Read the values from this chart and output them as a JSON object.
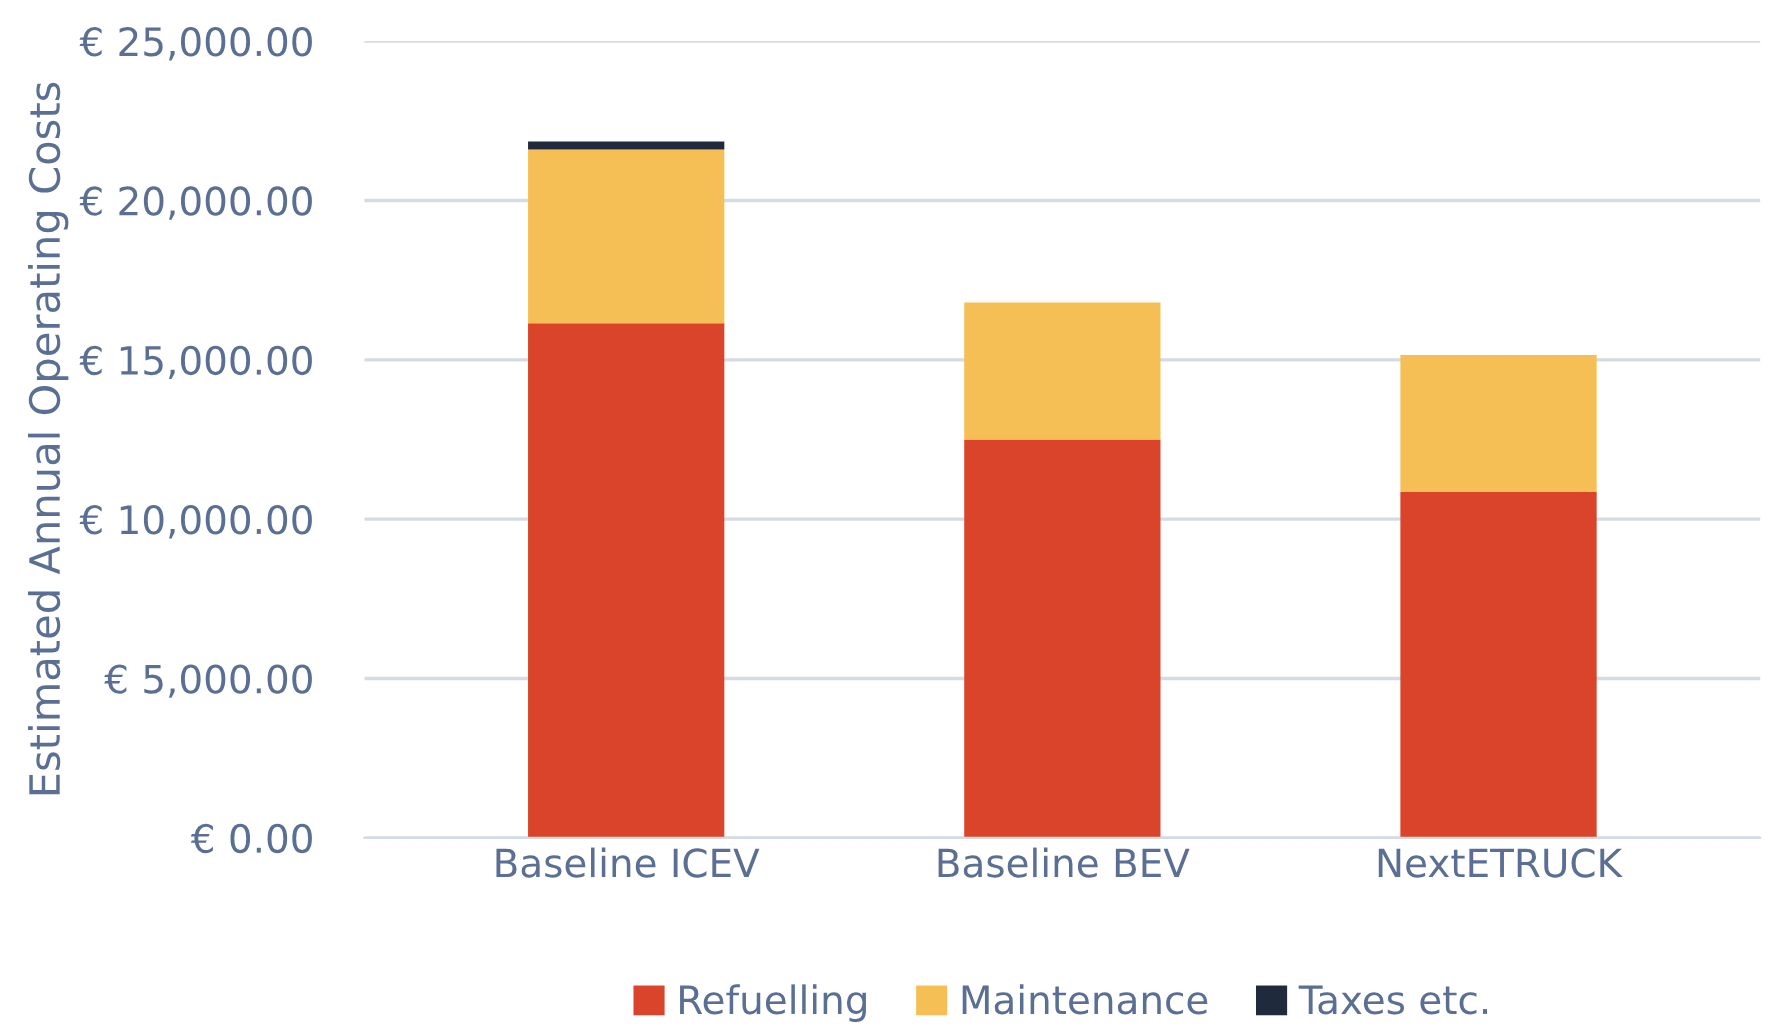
{
  "chart_data": {
    "type": "bar",
    "stacked": true,
    "ylabel": "Estimated Annual Operating Costs",
    "categories": [
      "Baseline ICEV",
      "Baseline BEV",
      "NextETRUCK"
    ],
    "series": [
      {
        "name": "Refuelling",
        "color": "#d9442a",
        "values": [
          16150,
          12500,
          10850
        ]
      },
      {
        "name": "Maintenance",
        "color": "#f6bf55",
        "values": [
          5450,
          4300,
          4300
        ]
      },
      {
        "name": "Taxes etc.",
        "color": "#1f2a3c",
        "values": [
          250,
          0,
          0
        ]
      }
    ],
    "ylim": [
      0,
      25000
    ],
    "yticks": [
      {
        "value": 0,
        "label": "€ 0.00"
      },
      {
        "value": 5000,
        "label": "€ 5,000.00"
      },
      {
        "value": 10000,
        "label": "€ 10,000.00"
      },
      {
        "value": 15000,
        "label": "€ 15,000.00"
      },
      {
        "value": 20000,
        "label": "€ 20,000.00"
      },
      {
        "value": 25000,
        "label": "€ 25,000.00"
      }
    ],
    "grid": "y",
    "legend": "bottom"
  }
}
